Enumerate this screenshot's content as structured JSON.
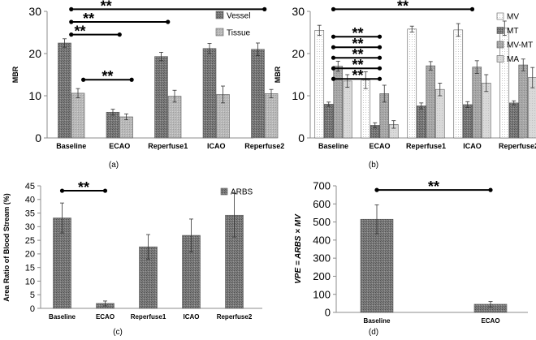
{
  "chart_data": [
    {
      "panel": "(a)",
      "type": "bar",
      "ylabel": "MBR",
      "xlabel": "",
      "ylim": [
        0,
        30
      ],
      "yticks": [
        0,
        10,
        20,
        30
      ],
      "categories": [
        "Baseline",
        "ECAO",
        "Reperfuse1",
        "ICAO",
        "Reperfuse2"
      ],
      "series": [
        {
          "name": "Vessel",
          "values": [
            22.5,
            6.1,
            19.3,
            21.2,
            21.0
          ],
          "errors": [
            1.0,
            0.7,
            1.0,
            1.2,
            1.5
          ]
        },
        {
          "name": "Tissue",
          "values": [
            10.6,
            5.0,
            9.9,
            10.3,
            10.5
          ],
          "errors": [
            1.1,
            0.7,
            1.4,
            2.0,
            1.0
          ]
        }
      ],
      "legend": "top-right",
      "significance": [
        {
          "label": "**",
          "from": 0,
          "to": 4,
          "y": 30.5
        },
        {
          "label": "**",
          "from": 0,
          "to": 2,
          "y": 27.5
        },
        {
          "label": "**",
          "from": 0,
          "to": 1,
          "y": 24.5
        },
        {
          "label": "**",
          "from": 0.25,
          "to": 1.25,
          "y": 13.8
        }
      ]
    },
    {
      "panel": "(b)",
      "type": "bar",
      "ylabel": "MBR",
      "xlabel": "",
      "ylim": [
        0,
        30
      ],
      "yticks": [
        0,
        10,
        20,
        30
      ],
      "categories": [
        "Baseline",
        "ECAO",
        "Reperfuse1",
        "ICAO",
        "Reperfuse2"
      ],
      "series": [
        {
          "name": "MV",
          "values": [
            25.5,
            13.7,
            25.8,
            25.6,
            26.0
          ],
          "errors": [
            1.2,
            2.0,
            0.7,
            1.5,
            1.7
          ]
        },
        {
          "name": "MT",
          "values": [
            8.0,
            3.0,
            7.6,
            7.9,
            8.3
          ],
          "errors": [
            0.5,
            0.6,
            0.7,
            0.7,
            0.5
          ]
        },
        {
          "name": "MV-MT",
          "values": [
            17.0,
            10.5,
            17.1,
            16.8,
            17.3
          ],
          "errors": [
            1.2,
            2.0,
            1.0,
            1.5,
            1.4
          ]
        },
        {
          "name": "MA",
          "values": [
            13.5,
            3.2,
            11.5,
            13.0,
            14.3
          ],
          "errors": [
            1.5,
            0.9,
            1.5,
            2.0,
            2.4
          ]
        }
      ],
      "legend": "top-right",
      "significance": [
        {
          "label": "**",
          "from": 0,
          "to": 3,
          "y": 30.5
        },
        {
          "label": "**",
          "from": 0,
          "to": 1,
          "y": 24.0
        },
        {
          "label": "**",
          "from": 0,
          "to": 1,
          "y": 21.5
        },
        {
          "label": "**",
          "from": 0,
          "to": 1,
          "y": 19.0
        },
        {
          "label": "**",
          "from": 0,
          "to": 1,
          "y": 16.5
        },
        {
          "label": "**",
          "from": 0,
          "to": 1,
          "y": 14.0
        }
      ]
    },
    {
      "panel": "(c)",
      "type": "bar",
      "ylabel": "Area Ratio of Blood Stream (%)",
      "xlabel": "",
      "ylim": [
        0,
        45
      ],
      "yticks": [
        0,
        5,
        10,
        15,
        20,
        25,
        30,
        35,
        40,
        45
      ],
      "categories": [
        "Baseline",
        "ECAO",
        "Reperfuse1",
        "ICAO",
        "Reperfuse2"
      ],
      "series": [
        {
          "name": "ARBS",
          "values": [
            33.2,
            1.8,
            22.6,
            26.8,
            34.2
          ],
          "errors": [
            5.5,
            0.9,
            4.5,
            6.0,
            8.0
          ]
        }
      ],
      "legend": "top-right",
      "significance": [
        {
          "label": "**",
          "from": 0,
          "to": 1,
          "y": 43.2
        }
      ]
    },
    {
      "panel": "(d)",
      "type": "bar",
      "ylabel": "VPE = ARBS × MV",
      "xlabel": "",
      "ylim": [
        0,
        700
      ],
      "yticks": [
        0,
        100,
        200,
        300,
        400,
        500,
        600,
        700
      ],
      "categories": [
        "Baseline",
        "ECAO"
      ],
      "series": [
        {
          "name": "VPE",
          "values": [
            515,
            45
          ],
          "errors": [
            80,
            15
          ]
        }
      ],
      "legend": "none",
      "significance": [
        {
          "label": "**",
          "from": 0,
          "to": 1,
          "y": 677
        }
      ]
    }
  ]
}
